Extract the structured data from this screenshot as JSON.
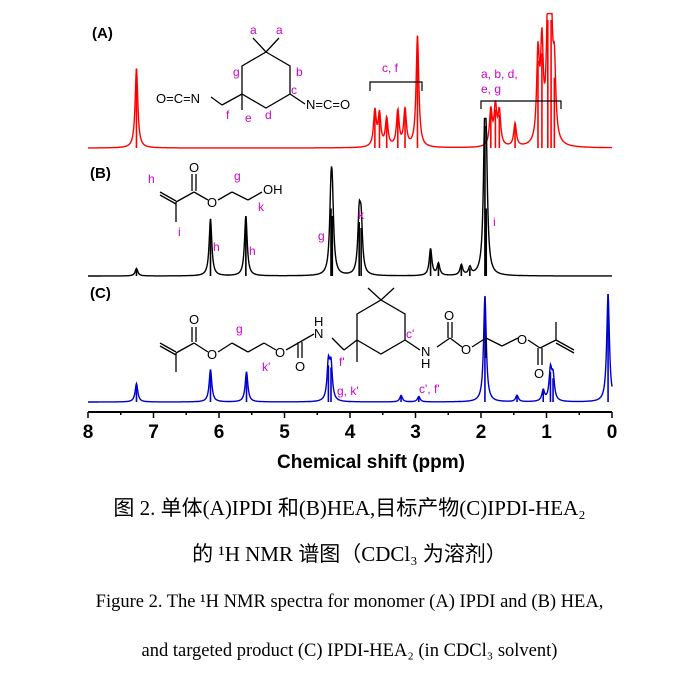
{
  "chart_data": {
    "type": "line",
    "xlabel": "Chemical shift (ppm)",
    "xlim": [
      8,
      0
    ],
    "xticks": [
      "8",
      "7",
      "6",
      "5",
      "4",
      "3",
      "2",
      "1",
      "0"
    ],
    "panels": [
      {
        "label": "(A)",
        "color": "#ff0000",
        "molecule": {
          "left_group": "O=C=N",
          "right_group": "N=C=O",
          "letters": [
            "a",
            "a",
            "b",
            "c",
            "d",
            "e",
            "f",
            "g"
          ]
        },
        "peak_annotations": [
          "c, f",
          "a, b, d,",
          "e, g"
        ],
        "peaks": [
          {
            "ppm": 7.26,
            "height": 0.62
          },
          {
            "ppm": 3.62,
            "height": 0.28
          },
          {
            "ppm": 3.55,
            "height": 0.25
          },
          {
            "ppm": 3.44,
            "height": 0.22
          },
          {
            "ppm": 3.27,
            "height": 0.28
          },
          {
            "ppm": 3.16,
            "height": 0.29
          },
          {
            "ppm": 2.97,
            "height": 0.87
          },
          {
            "ppm": 1.85,
            "height": 0.28
          },
          {
            "ppm": 1.78,
            "height": 0.3
          },
          {
            "ppm": 1.72,
            "height": 0.26
          },
          {
            "ppm": 1.48,
            "height": 0.18
          },
          {
            "ppm": 1.13,
            "height": 0.68
          },
          {
            "ppm": 1.07,
            "height": 0.74
          },
          {
            "ppm": 0.98,
            "height": 1.0
          },
          {
            "ppm": 0.93,
            "height": 1.0
          },
          {
            "ppm": 0.88,
            "height": 0.55
          }
        ]
      },
      {
        "label": "(B)",
        "color": "#000000",
        "molecule": {
          "oh_group": "OH",
          "letters": [
            "h",
            "i",
            "g",
            "k"
          ]
        },
        "peak_annotations": [
          "h",
          "h",
          "g",
          "k",
          "i"
        ],
        "peaks": [
          {
            "ppm": 7.26,
            "height": 0.05
          },
          {
            "ppm": 6.13,
            "height": 0.38
          },
          {
            "ppm": 5.59,
            "height": 0.4
          },
          {
            "ppm": 4.29,
            "height": 0.45
          },
          {
            "ppm": 4.27,
            "height": 0.4
          },
          {
            "ppm": 3.86,
            "height": 0.36
          },
          {
            "ppm": 3.83,
            "height": 0.32
          },
          {
            "ppm": 2.77,
            "height": 0.18
          },
          {
            "ppm": 2.65,
            "height": 0.08
          },
          {
            "ppm": 2.3,
            "height": 0.07
          },
          {
            "ppm": 2.17,
            "height": 0.05
          },
          {
            "ppm": 1.94,
            "height": 1.0
          },
          {
            "ppm": 1.92,
            "height": 0.45
          }
        ]
      },
      {
        "label": "(C)",
        "color": "#0000cc",
        "molecule": {
          "letters": [
            "g",
            "k'",
            "f'",
            "c'"
          ]
        },
        "peak_annotations": [
          "g, k'",
          "c', f'"
        ],
        "peaks": [
          {
            "ppm": 7.26,
            "height": 0.17
          },
          {
            "ppm": 6.13,
            "height": 0.3
          },
          {
            "ppm": 5.58,
            "height": 0.28
          },
          {
            "ppm": 4.33,
            "height": 0.34
          },
          {
            "ppm": 4.29,
            "height": 0.32
          },
          {
            "ppm": 3.22,
            "height": 0.06
          },
          {
            "ppm": 2.95,
            "height": 0.05
          },
          {
            "ppm": 1.94,
            "height": 0.98
          },
          {
            "ppm": 1.45,
            "height": 0.06
          },
          {
            "ppm": 1.05,
            "height": 0.1
          },
          {
            "ppm": 0.94,
            "height": 0.28
          },
          {
            "ppm": 0.9,
            "height": 0.22
          },
          {
            "ppm": 0.06,
            "height": 1.0
          }
        ]
      }
    ]
  },
  "caption": {
    "cn_line1": "图 2. 单体(A)IPDI 和(B)HEA,目标产物(C)IPDI-HEA₂",
    "cn_line2": "的 ¹H NMR 谱图（CDCl₃ 为溶剂）",
    "en_line1": "Figure 2. The ¹H NMR spectra for monomer (A) IPDI and (B) HEA,",
    "en_line2": "and targeted product (C) IPDI-HEA₂ (in CDCl₃ solvent)"
  }
}
